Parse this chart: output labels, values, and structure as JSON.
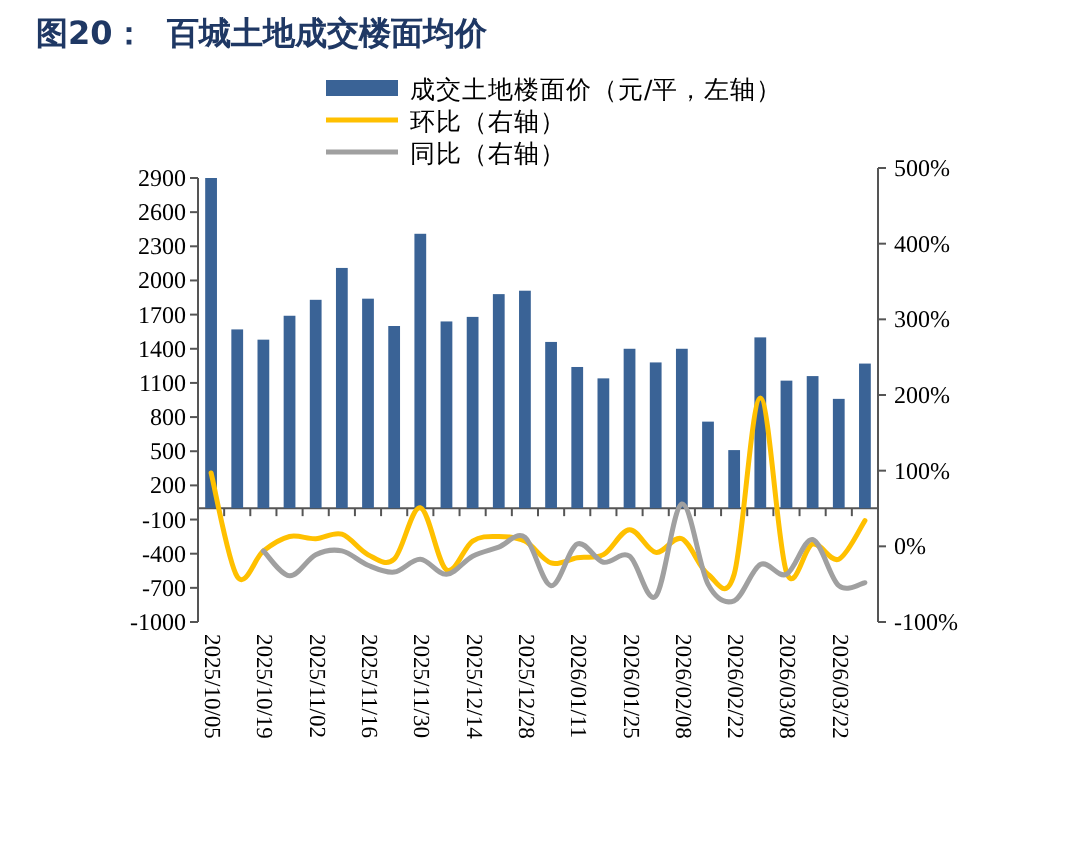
{
  "chart_data": {
    "type": "bar",
    "title": "图20：  百城土地成交楼面均价",
    "categories": [
      "2025/10/05",
      null,
      "2025/10/19",
      null,
      "2025/11/02",
      null,
      "2025/11/16",
      null,
      "2025/11/30",
      null,
      "2025/12/14",
      null,
      "2025/12/28",
      null,
      "2026/01/11",
      null,
      "2026/01/25",
      null,
      "2026/02/08",
      null,
      "2026/02/22",
      null,
      "2026/03/08",
      null,
      "2026/03/22",
      null
    ],
    "series": [
      {
        "name": "成交土地楼面价（元/平，左轴）",
        "color": "#3a6396",
        "values": [
          2900,
          1570,
          1480,
          1690,
          1830,
          2110,
          1840,
          1600,
          2410,
          1640,
          1680,
          1880,
          1910,
          1460,
          1240,
          1140,
          1400,
          1280,
          1400,
          760,
          510,
          1500,
          1120,
          1160,
          960,
          1270
        ]
      },
      {
        "name": "环比（右轴）",
        "type": "line",
        "axis": "y2",
        "color": "#ffc000",
        "values": [
          97,
          -40,
          -6,
          13,
          10,
          16,
          -11,
          -17,
          51,
          -31,
          7,
          13,
          7,
          -22,
          -15,
          -11,
          22,
          -8,
          10,
          -37,
          -37,
          196,
          -34,
          3,
          -17,
          34
        ]
      },
      {
        "name": "同比（右轴）",
        "type": "line",
        "axis": "y2",
        "color": "#a0a0a0",
        "values": [
          null,
          null,
          -6,
          -39,
          -11,
          -6,
          -25,
          -34,
          -17,
          -37,
          -13,
          -1,
          12,
          -52,
          3,
          -21,
          -13,
          -66,
          56,
          -50,
          -72,
          -24,
          -37,
          9,
          -52,
          -48
        ]
      }
    ],
    "ylim": [
      -1000,
      2900
    ],
    "yticks": [
      -1000,
      -700,
      -400,
      -100,
      200,
      500,
      800,
      1100,
      1400,
      1700,
      2000,
      2300,
      2600,
      2900
    ],
    "y2lim": [
      -100,
      500
    ],
    "y2ticks": [
      {
        "value": -100,
        "label": "-100%"
      },
      {
        "value": 0,
        "label": "0%"
      },
      {
        "value": 100,
        "label": "100%"
      },
      {
        "value": 200,
        "label": "200%"
      },
      {
        "value": 300,
        "label": "300%"
      },
      {
        "value": 400,
        "label": "400%"
      },
      {
        "value": 500,
        "label": "500%"
      }
    ],
    "legend": "top"
  }
}
